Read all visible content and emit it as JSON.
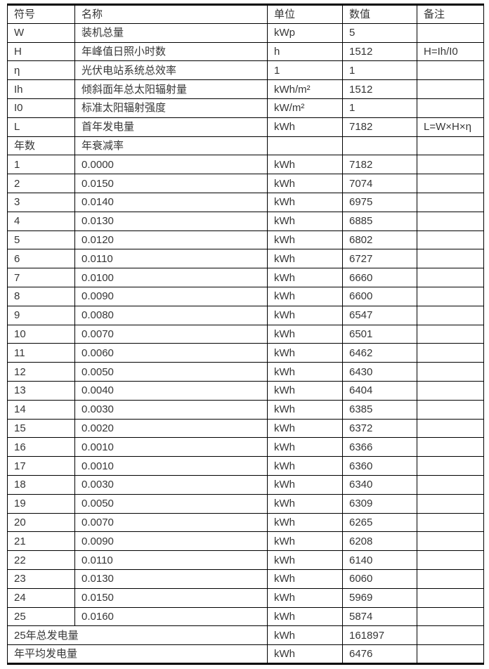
{
  "table": {
    "headers": [
      "符号",
      "名称",
      "单位",
      "数值",
      "备注"
    ],
    "param_rows": [
      {
        "symbol": "W",
        "name": "装机总量",
        "unit": "kWp",
        "value": "5",
        "note": ""
      },
      {
        "symbol": "H",
        "name": "年峰值日照小时数",
        "unit": "h",
        "value": "1512",
        "note": "H=Ih/I0"
      },
      {
        "symbol": "η",
        "name": "光伏电站系统总效率",
        "unit": "1",
        "value": "1",
        "note": ""
      },
      {
        "symbol": "Ih",
        "name": "倾斜面年总太阳辐射量",
        "unit": "kWh/m²",
        "value": "1512",
        "note": ""
      },
      {
        "symbol": "I0",
        "name": "标准太阳辐射强度",
        "unit": "kW/m²",
        "value": "1",
        "note": ""
      },
      {
        "symbol": "L",
        "name": "首年发电量",
        "unit": "kWh",
        "value": "7182",
        "note": "L=W×H×η"
      }
    ],
    "year_header": {
      "col1": "年数",
      "col2": "年衰减率",
      "unit": "",
      "value": "",
      "note": ""
    },
    "year_rows": [
      {
        "year": "1",
        "decay": "0.0000",
        "unit": "kWh",
        "value": "7182",
        "note": ""
      },
      {
        "year": "2",
        "decay": "0.0150",
        "unit": "kWh",
        "value": "7074",
        "note": ""
      },
      {
        "year": "3",
        "decay": "0.0140",
        "unit": "kWh",
        "value": "6975",
        "note": ""
      },
      {
        "year": "4",
        "decay": "0.0130",
        "unit": "kWh",
        "value": "6885",
        "note": ""
      },
      {
        "year": "5",
        "decay": "0.0120",
        "unit": "kWh",
        "value": "6802",
        "note": ""
      },
      {
        "year": "6",
        "decay": "0.0110",
        "unit": "kWh",
        "value": "6727",
        "note": ""
      },
      {
        "year": "7",
        "decay": "0.0100",
        "unit": "kWh",
        "value": "6660",
        "note": ""
      },
      {
        "year": "8",
        "decay": "0.0090",
        "unit": "kWh",
        "value": "6600",
        "note": ""
      },
      {
        "year": "9",
        "decay": "0.0080",
        "unit": "kWh",
        "value": "6547",
        "note": ""
      },
      {
        "year": "10",
        "decay": "0.0070",
        "unit": "kWh",
        "value": "6501",
        "note": ""
      },
      {
        "year": "11",
        "decay": "0.0060",
        "unit": "kWh",
        "value": "6462",
        "note": ""
      },
      {
        "year": "12",
        "decay": "0.0050",
        "unit": "kWh",
        "value": "6430",
        "note": ""
      },
      {
        "year": "13",
        "decay": "0.0040",
        "unit": "kWh",
        "value": "6404",
        "note": ""
      },
      {
        "year": "14",
        "decay": "0.0030",
        "unit": "kWh",
        "value": "6385",
        "note": ""
      },
      {
        "year": "15",
        "decay": "0.0020",
        "unit": "kWh",
        "value": "6372",
        "note": ""
      },
      {
        "year": "16",
        "decay": "0.0010",
        "unit": "kWh",
        "value": "6366",
        "note": ""
      },
      {
        "year": "17",
        "decay": "0.0010",
        "unit": "kWh",
        "value": "6360",
        "note": ""
      },
      {
        "year": "18",
        "decay": "0.0030",
        "unit": "kWh",
        "value": "6340",
        "note": ""
      },
      {
        "year": "19",
        "decay": "0.0050",
        "unit": "kWh",
        "value": "6309",
        "note": ""
      },
      {
        "year": "20",
        "decay": "0.0070",
        "unit": "kWh",
        "value": "6265",
        "note": ""
      },
      {
        "year": "21",
        "decay": "0.0090",
        "unit": "kWh",
        "value": "6208",
        "note": ""
      },
      {
        "year": "22",
        "decay": "0.0110",
        "unit": "kWh",
        "value": "6140",
        "note": ""
      },
      {
        "year": "23",
        "decay": "0.0130",
        "unit": "kWh",
        "value": "6060",
        "note": ""
      },
      {
        "year": "24",
        "decay": "0.0150",
        "unit": "kWh",
        "value": "5969",
        "note": ""
      },
      {
        "year": "25",
        "decay": "0.0160",
        "unit": "kWh",
        "value": "5874",
        "note": ""
      }
    ],
    "summary_rows": [
      {
        "label": "25年总发电量",
        "unit": "kWh",
        "value": "161897",
        "note": ""
      },
      {
        "label": "年平均发电量",
        "unit": "kWh",
        "value": "6476",
        "note": ""
      }
    ]
  },
  "colors": {
    "text": "#363636",
    "border": "#000000",
    "background": "#ffffff"
  }
}
